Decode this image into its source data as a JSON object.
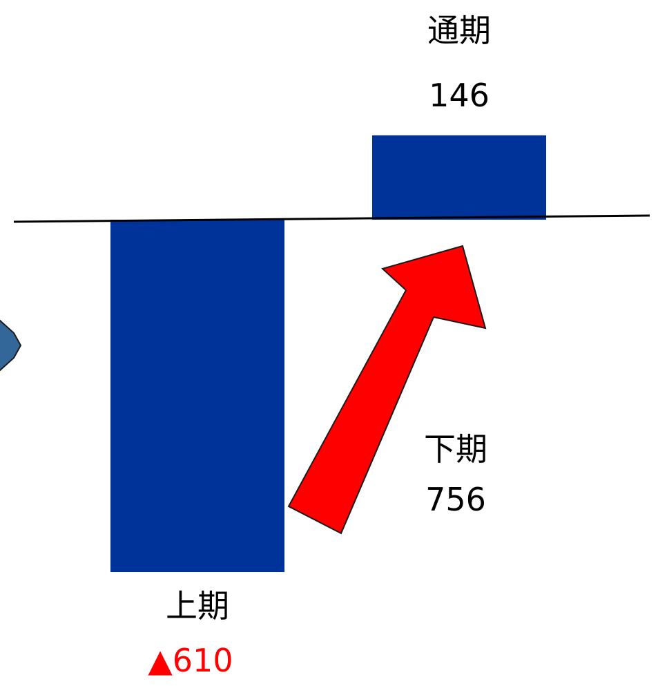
{
  "chart_data": {
    "type": "bar",
    "categories": [
      "上期",
      "通期"
    ],
    "values": [
      -610,
      146
    ],
    "value_labels": [
      "▲610",
      "146"
    ],
    "bridge": {
      "label": "下期",
      "value": "756",
      "from": "上期",
      "to": "通期"
    },
    "grid": false,
    "legend": "none",
    "colors": {
      "bar": "#003399",
      "negative_label": "#ff0000",
      "arrow": "#ff0000",
      "text": "#000000",
      "partial_shape": "#336699"
    }
  }
}
